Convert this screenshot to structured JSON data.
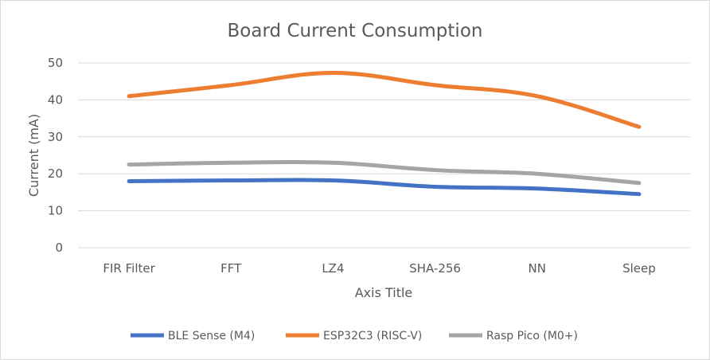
{
  "chart_data": {
    "type": "line",
    "title": "Board Current Consumption",
    "xlabel": "Axis Title",
    "ylabel": "Current (mA)",
    "categories": [
      "FIR Filter",
      "FFT",
      "LZ4",
      "SHA-256",
      "NN",
      "Sleep"
    ],
    "ylim": [
      0,
      50
    ],
    "yticks": [
      0,
      10,
      20,
      30,
      40,
      50
    ],
    "grid": true,
    "legend_position": "bottom",
    "series": [
      {
        "name": "BLE Sense (M4)",
        "color": "#4472C4",
        "values": [
          18,
          18.2,
          18.2,
          16.5,
          16,
          14.5
        ]
      },
      {
        "name": "ESP32C3 (RISC-V)",
        "color": "#ED7D31",
        "values": [
          41,
          44,
          47.3,
          44,
          41,
          32.7
        ]
      },
      {
        "name": "Rasp Pico (M0+)",
        "color": "#A5A5A5",
        "values": [
          22.5,
          23,
          23,
          21,
          20,
          17.5
        ]
      }
    ]
  }
}
